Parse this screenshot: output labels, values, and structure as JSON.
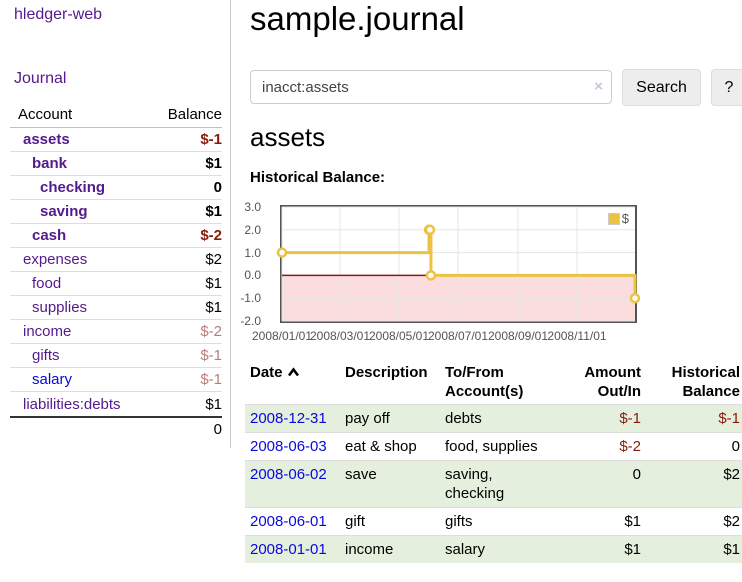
{
  "colors": {
    "link_purple": "#551A8B",
    "link_blue": "#0909DD",
    "negative_dark": "#8B1A0A",
    "negative_muted": "#BB7A7A",
    "stripe_green": "#E4EFDE",
    "chart_line_gold": "#EDC240"
  },
  "app": {
    "brand": "hledger-web",
    "nav_journal": "Journal"
  },
  "sidebar": {
    "accounts_header": {
      "account": "Account",
      "balance": "Balance"
    },
    "accounts": [
      {
        "name": "assets",
        "balance": "$-1"
      },
      {
        "name": "bank",
        "balance": "$1"
      },
      {
        "name": "checking",
        "balance": "0"
      },
      {
        "name": "saving",
        "balance": "$1"
      },
      {
        "name": "cash",
        "balance": "$-2"
      },
      {
        "name": "expenses",
        "balance": "$2"
      },
      {
        "name": "food",
        "balance": "$1"
      },
      {
        "name": "supplies",
        "balance": "$1"
      },
      {
        "name": "income",
        "balance": "$-2"
      },
      {
        "name": "gifts",
        "balance": "$-1"
      },
      {
        "name": "salary",
        "balance": "$-1"
      },
      {
        "name": "liabilities:debts",
        "balance": "$1"
      }
    ],
    "total": "0"
  },
  "main": {
    "title": "sample.journal",
    "search": {
      "value": "inacct:assets",
      "clear_icon": "×",
      "button": "Search",
      "help_button": "?"
    },
    "account_heading": "assets",
    "chart_label": "Historical Balance:"
  },
  "chart_data": {
    "type": "line",
    "title": "Historical Balance",
    "x_start": "2008-01-01",
    "x_end": "2008-12-31",
    "ylim": [
      -2,
      3
    ],
    "y_ticks": [
      3,
      2,
      1,
      0,
      -1,
      -2
    ],
    "x_ticks": [
      "2008/01/01",
      "2008/03/01",
      "2008/05/01",
      "2008/07/01",
      "2008/09/01",
      "2008/11/01"
    ],
    "grid": true,
    "legend_position": "top-right",
    "legend": {
      "label": "$"
    },
    "negative_fill": "#FBDDDD",
    "zero_line_color": "#8C1717",
    "series": [
      {
        "name": "$",
        "color": "#EDC240",
        "style": "step",
        "points": [
          [
            "2008-01-01",
            1
          ],
          [
            "2008-06-01",
            2
          ],
          [
            "2008-06-02",
            2
          ],
          [
            "2008-06-03",
            0
          ],
          [
            "2008-12-31",
            -1
          ]
        ]
      }
    ]
  },
  "register": {
    "headers": {
      "date": "Date",
      "description": "Description",
      "accounts": "To/From Account(s)",
      "amount": "Amount Out/In",
      "balance": "Historical Balance"
    },
    "rows": [
      {
        "date": "2008-12-31",
        "description": "pay off",
        "accounts": "debts",
        "amount": "$-1",
        "balance": "$-1"
      },
      {
        "date": "2008-06-03",
        "description": "eat & shop",
        "accounts": "food, supplies",
        "amount": "$-2",
        "balance": "0"
      },
      {
        "date": "2008-06-02",
        "description": "save",
        "accounts": "saving,\nchecking",
        "amount": "0",
        "balance": "$2"
      },
      {
        "date": "2008-06-01",
        "description": "gift",
        "accounts": "gifts",
        "amount": "$1",
        "balance": "$2"
      },
      {
        "date": "2008-01-01",
        "description": "income",
        "accounts": "salary",
        "amount": "$1",
        "balance": "$1"
      }
    ]
  }
}
